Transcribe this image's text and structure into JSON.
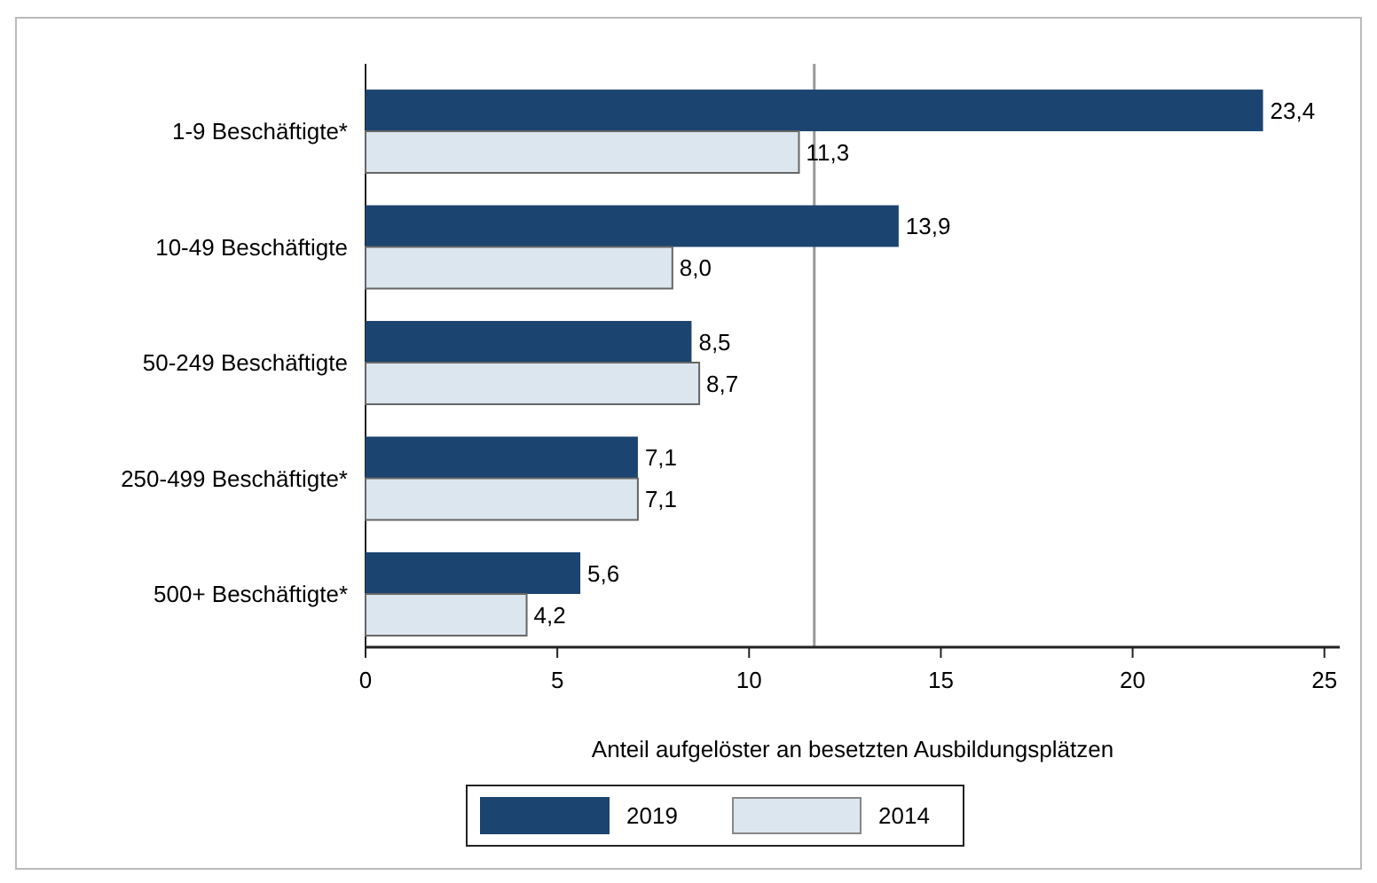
{
  "chart_data": {
    "type": "bar",
    "orientation": "horizontal",
    "xlabel": "Anteil aufgelöster an besetzten Ausbildungsplätzen",
    "categories": [
      "1-9 Beschäftigte*",
      "10-49 Beschäftigte",
      "50-249 Beschäftigte",
      "250-499 Beschäftigte*",
      "500+ Beschäftigte*"
    ],
    "series": [
      {
        "name": "2019",
        "color": "#1b4470",
        "values": [
          23.4,
          13.9,
          8.5,
          7.1,
          5.6
        ],
        "value_labels": [
          "23,4",
          "13,9",
          "8,5",
          "7,1",
          "5,6"
        ]
      },
      {
        "name": "2014",
        "color": "#dce6ee",
        "values": [
          11.3,
          8.0,
          8.7,
          7.1,
          4.2
        ],
        "value_labels": [
          "11,3",
          "8,0",
          "8,7",
          "7,1",
          "4,2"
        ]
      }
    ],
    "xlim": [
      0,
      25.4
    ],
    "xticks": [
      0,
      5,
      10,
      15,
      20,
      25
    ],
    "ref_lines": [
      {
        "axis": "x",
        "value": 11.7,
        "color": "#999999"
      }
    ],
    "grid": false,
    "legend": "bottom"
  }
}
